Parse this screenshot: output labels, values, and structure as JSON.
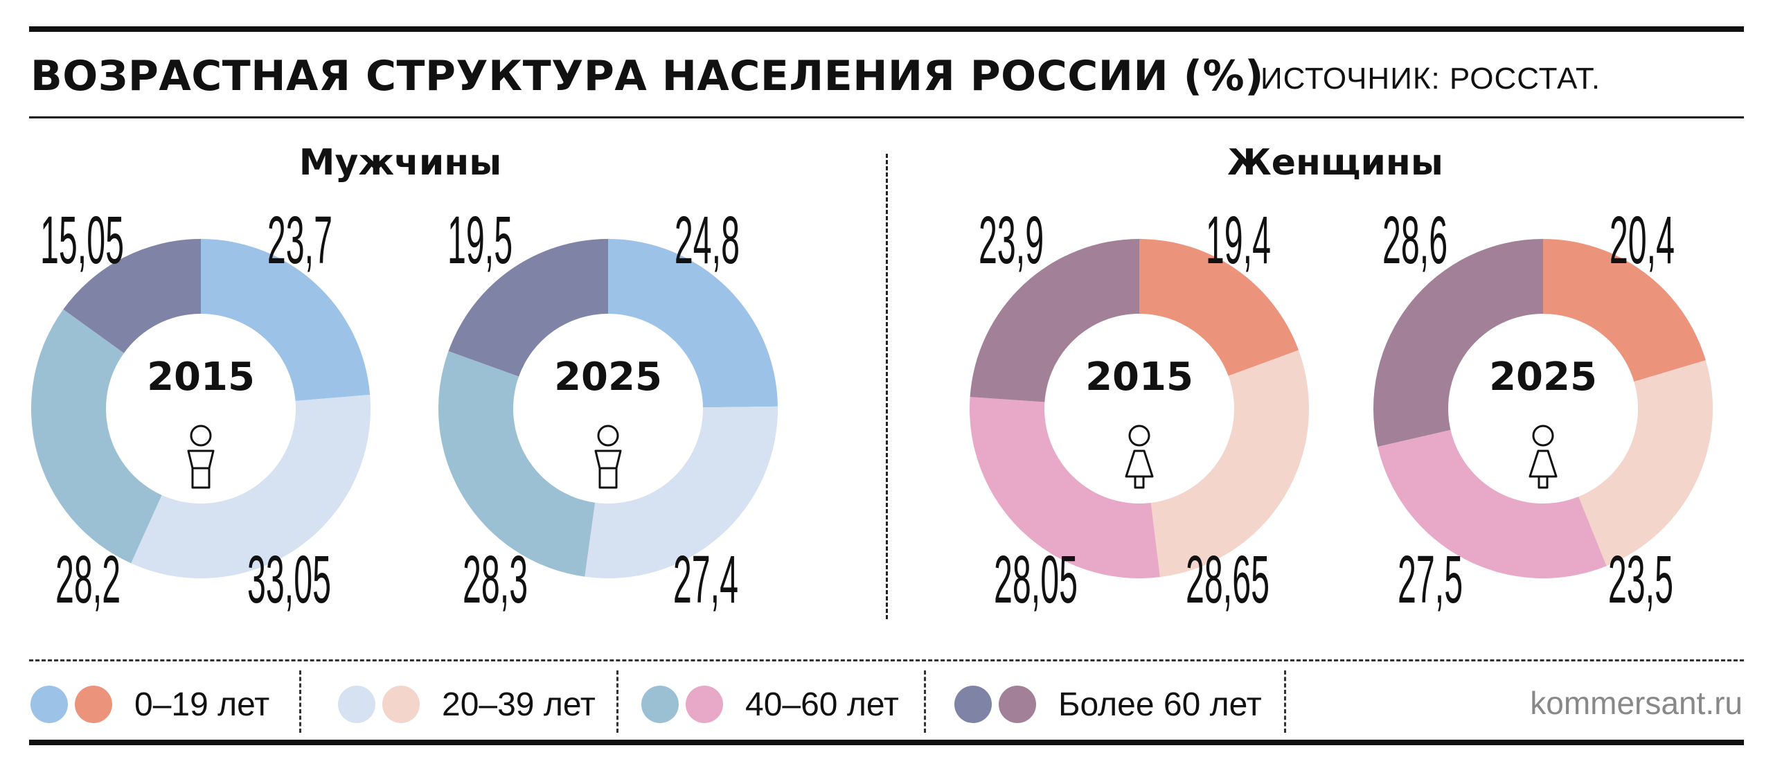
{
  "header": {
    "title": "ВОЗРАСТНАЯ СТРУКТУРА НАСЕЛЕНИЯ РОССИИ (%)",
    "source": "ИСТОЧНИК: РОССТАТ."
  },
  "panels": {
    "men": "Мужчины",
    "women": "Женщины"
  },
  "legend": [
    {
      "label": "0–19 лет",
      "colors": [
        "#9dc2e8",
        "#ec937c"
      ]
    },
    {
      "label": "20–39 лет",
      "colors": [
        "#d6e2f1",
        "#f3d5cc"
      ]
    },
    {
      "label": "40–60 лет",
      "colors": [
        "#9cc0d3",
        "#e8a9c8"
      ]
    },
    {
      "label": "Более 60 лет",
      "colors": [
        "#7f84a6",
        "#a28097"
      ]
    }
  ],
  "footer": {
    "site": "kommersant.ru"
  },
  "chart_data": [
    {
      "type": "pie",
      "variant": "donut",
      "group": "Мужчины",
      "center_label": "2015",
      "icon": "male-icon",
      "categories": [
        "0–19 лет",
        "20–39 лет",
        "40–60 лет",
        "Более 60 лет"
      ],
      "values": [
        23.7,
        33.05,
        28.2,
        15.05
      ],
      "labels": [
        "23,7",
        "33,05",
        "28,2",
        "15,05"
      ],
      "colors": [
        "#9dc2e8",
        "#d6e2f1",
        "#9cc0d3",
        "#7f84a6"
      ]
    },
    {
      "type": "pie",
      "variant": "donut",
      "group": "Мужчины",
      "center_label": "2025",
      "icon": "male-icon",
      "categories": [
        "0–19 лет",
        "20–39 лет",
        "40–60 лет",
        "Более 60 лет"
      ],
      "values": [
        24.8,
        27.4,
        28.3,
        19.5
      ],
      "labels": [
        "24,8",
        "27,4",
        "28,3",
        "19,5"
      ],
      "colors": [
        "#9dc2e8",
        "#d6e2f1",
        "#9cc0d3",
        "#7f84a6"
      ]
    },
    {
      "type": "pie",
      "variant": "donut",
      "group": "Женщины",
      "center_label": "2015",
      "icon": "female-icon",
      "categories": [
        "0–19 лет",
        "20–39 лет",
        "40–60 лет",
        "Более 60 лет"
      ],
      "values": [
        19.4,
        28.65,
        28.05,
        23.9
      ],
      "labels": [
        "19,4",
        "28,65",
        "28,05",
        "23,9"
      ],
      "colors": [
        "#ec937c",
        "#f3d5cc",
        "#e8a9c8",
        "#a28097"
      ]
    },
    {
      "type": "pie",
      "variant": "donut",
      "group": "Женщины",
      "center_label": "2025",
      "icon": "female-icon",
      "categories": [
        "0–19 лет",
        "20–39 лет",
        "40–60 лет",
        "Более 60 лет"
      ],
      "values": [
        20.4,
        23.5,
        27.5,
        28.6
      ],
      "labels": [
        "20,4",
        "23,5",
        "27,5",
        "28,6"
      ],
      "colors": [
        "#ec937c",
        "#f3d5cc",
        "#e8a9c8",
        "#a28097"
      ]
    }
  ]
}
